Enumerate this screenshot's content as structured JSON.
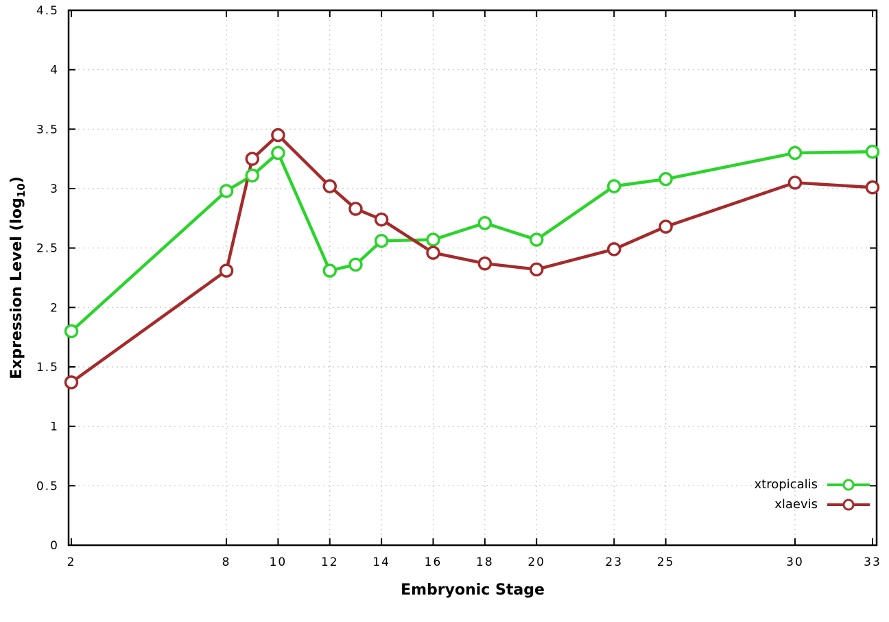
{
  "chart_data": {
    "type": "line",
    "x": [
      2,
      8,
      9,
      10,
      12,
      13,
      14,
      16,
      18,
      20,
      23,
      25,
      30,
      33
    ],
    "series": [
      {
        "name": "xtropicalis",
        "color": "#2bd42b",
        "values": [
          1.8,
          2.98,
          3.11,
          3.3,
          2.31,
          2.36,
          2.56,
          2.57,
          2.71,
          2.57,
          3.02,
          3.08,
          3.3,
          3.31
        ]
      },
      {
        "name": "xlaevis",
        "color": "#a52a2a",
        "values": [
          1.37,
          2.31,
          3.25,
          3.45,
          3.02,
          2.83,
          2.74,
          2.46,
          2.37,
          2.32,
          2.49,
          2.68,
          3.05,
          3.01
        ]
      }
    ],
    "xlabel": "Embryonic Stage",
    "ylabel": {
      "pre": "Expression Level (log",
      "sub": "10",
      "post": ")"
    },
    "xlim": [
      2,
      33
    ],
    "ylim": [
      0,
      4.5
    ],
    "xticks": [
      2,
      8,
      10,
      12,
      14,
      16,
      18,
      20,
      23,
      25,
      30,
      33
    ],
    "yticks": [
      {
        "value": 0,
        "label": "0"
      },
      {
        "value": 0.5,
        "label": "0.5"
      },
      {
        "value": 1,
        "label": "1"
      },
      {
        "value": 1.5,
        "label": "1.5"
      },
      {
        "value": 2,
        "label": "2"
      },
      {
        "value": 2.5,
        "label": "2.5"
      },
      {
        "value": 3,
        "label": "3"
      },
      {
        "value": 3.5,
        "label": "3.5"
      },
      {
        "value": 4,
        "label": "4"
      },
      {
        "value": 4.5,
        "label": "4.5"
      }
    ],
    "grid": true,
    "legend_position": "bottom-right",
    "colors": {
      "axis": "#000000",
      "grid": "#c4c4c4",
      "background": "#ffffff"
    }
  }
}
